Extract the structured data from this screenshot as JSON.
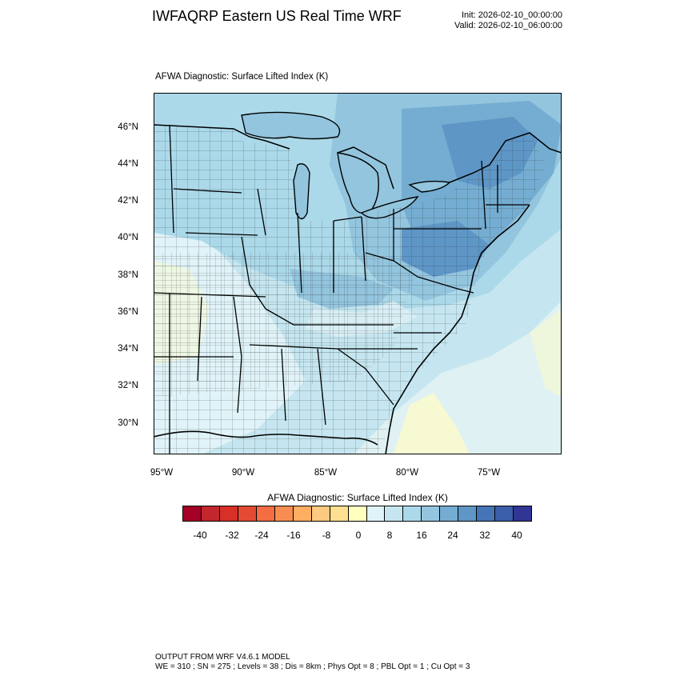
{
  "header": {
    "title": "IWFAQRP Eastern US Real Time WRF",
    "init": "Init: 2026-02-10_00:00:00",
    "valid": "Valid: 2026-02-10_06:00:00"
  },
  "plot": {
    "subtitle": "AFWA Diagnostic: Surface Lifted Index   (K)",
    "lat_labels": [
      "46°N",
      "44°N",
      "42°N",
      "40°N",
      "38°N",
      "36°N",
      "34°N",
      "32°N",
      "30°N"
    ],
    "lon_labels": [
      "95°W",
      "90°W",
      "85°W",
      "80°W",
      "75°W"
    ]
  },
  "colorbar": {
    "title": "AFWA Diagnostic: Surface Lifted Index  (K)",
    "labels": [
      "-40",
      "-32",
      "-24",
      "-16",
      "-8",
      "0",
      "8",
      "16",
      "24",
      "32",
      "40"
    ],
    "colors": [
      "#a50026",
      "#c1272d",
      "#d73027",
      "#e34a33",
      "#f46d43",
      "#f88d52",
      "#fdae61",
      "#fec980",
      "#fee090",
      "#ffffbf",
      "#e0f3f8",
      "#c5e6f0",
      "#abd9e9",
      "#93c5de",
      "#74add1",
      "#5e96c6",
      "#4575b4",
      "#3b5fa8",
      "#313695"
    ]
  },
  "footer": {
    "line1": "OUTPUT FROM WRF V4.6.1 MODEL",
    "line2": "WE = 310 ; SN = 275 ; Levels = 38 ; Dis = 8km ; Phys Opt = 8 ; PBL Opt = 1 ; Cu Opt = 3"
  }
}
